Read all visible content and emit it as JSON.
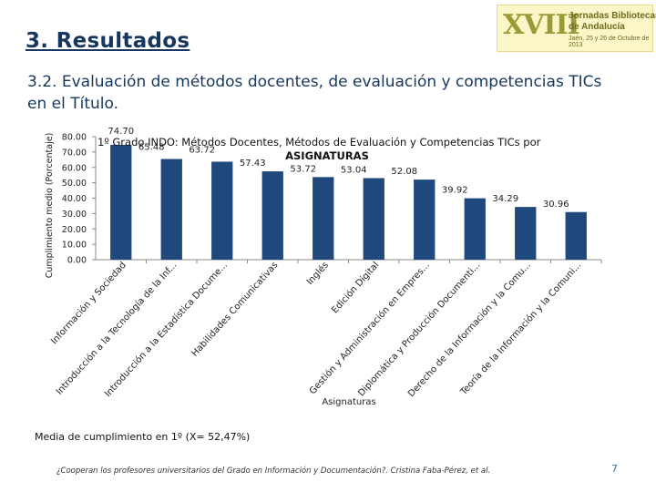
{
  "slide": {
    "heading": "3. Resultados",
    "subheading": "3.2. Evaluación de métodos docentes, de evaluación y competencias TICs en el Título.",
    "mean_note": "Media de cumplimiento en 1º (X= 52,47%)",
    "footer": "¿Cooperan los profesores universitarios del Grado en Información y Documentación?. Cristina Faba-Pérez, et al.",
    "page_number": "7",
    "logo": {
      "numeral": "XVIII",
      "name": "Jornadas Bibliotecarias\nde Andalucía",
      "date": "Jaén, 25 y 26 de Octubre de 2013"
    }
  },
  "colors": {
    "bar": "#1f497d",
    "heading": "#17375e",
    "axis": "#888888"
  },
  "chart_data": {
    "type": "bar",
    "title": "1º Grado INDO: Métodos Docentes, Métodos de Evaluación y Competencias TICs por ASIGNATURAS",
    "xlabel": "Asignaturas",
    "ylabel": "Cumplimiento medio (Porcentaje)",
    "ylim": [
      0,
      80
    ],
    "yticks": [
      "80.00",
      "70.00",
      "60.00",
      "50.00",
      "40.00",
      "30.00",
      "20.00",
      "10.00",
      "0.00"
    ],
    "categories": [
      "Información y Sociedad",
      "Introducción a la Tecnología de la Inf...",
      "Introducción a la Estadística Docume...",
      "Habilidades Comunicativas",
      "Inglés",
      "Edición Digital",
      "Gestión y Administración en Empres...",
      "Diplomática y Producción Documenti...",
      "Derecho de la Información y la Comu...",
      "Teoría de la Información y la Comuni..."
    ],
    "values": [
      74.7,
      65.48,
      63.72,
      57.43,
      53.72,
      53.04,
      52.08,
      39.92,
      34.29,
      30.96
    ],
    "value_labels": [
      "74.70",
      "65.48",
      "63.72",
      "57.43",
      "53.72",
      "53.04",
      "52.08",
      "39.92",
      "34.29",
      "30.96"
    ]
  }
}
